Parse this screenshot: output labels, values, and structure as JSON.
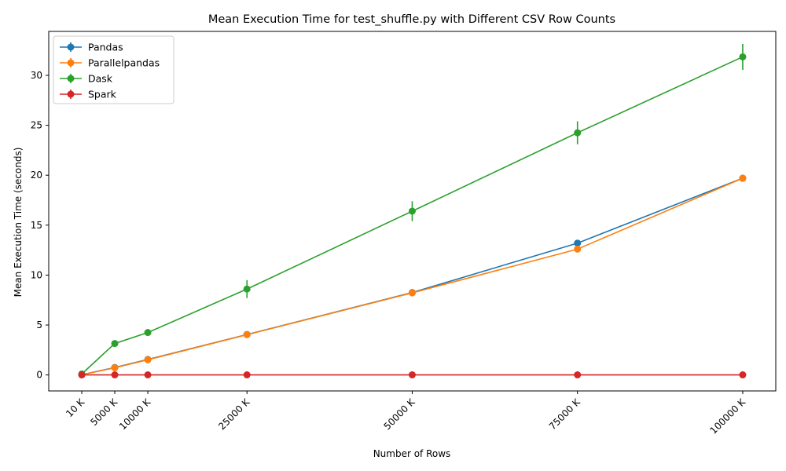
{
  "chart_data": {
    "type": "line",
    "title": "Mean Execution Time for test_shuffle.py with Different CSV Row Counts",
    "xlabel": "Number of Rows",
    "ylabel": "Mean Execution Time (seconds)",
    "x": [
      10,
      5000,
      10000,
      25000,
      50000,
      75000,
      100000
    ],
    "x_tick_labels": [
      "10 K",
      "5000 K",
      "10000 K",
      "25000 K",
      "50000 K",
      "75000 K",
      "100000 K"
    ],
    "y_ticks": [
      0,
      5,
      10,
      15,
      20,
      25,
      30
    ],
    "ylim": [
      -1.6,
      34.4
    ],
    "xlim": [
      -4990,
      105000
    ],
    "grid": false,
    "legend_position": "top-left",
    "series": [
      {
        "name": "Pandas",
        "color": "#1f77b4",
        "values": [
          0.02,
          0.75,
          1.55,
          4.05,
          8.25,
          13.2,
          19.7
        ],
        "errors": [
          0,
          0.05,
          0.05,
          0.1,
          0.1,
          0.15,
          0.2
        ]
      },
      {
        "name": "Parallelpandas",
        "color": "#ff7f0e",
        "values": [
          0.02,
          0.72,
          1.52,
          4.03,
          8.22,
          12.6,
          19.7
        ],
        "errors": [
          0,
          0.05,
          0.05,
          0.1,
          0.1,
          0.15,
          0.2
        ]
      },
      {
        "name": "Dask",
        "color": "#2ca02c",
        "values": [
          0.1,
          3.15,
          4.25,
          8.6,
          16.4,
          24.25,
          31.85
        ],
        "errors": [
          0.05,
          0.15,
          0.35,
          0.9,
          1.0,
          1.15,
          1.3
        ]
      },
      {
        "name": "Spark",
        "color": "#d62728",
        "values": [
          0.01,
          0.01,
          0.01,
          0.01,
          0.01,
          0.01,
          0.01
        ],
        "errors": [
          0,
          0,
          0,
          0,
          0,
          0,
          0
        ]
      }
    ]
  }
}
